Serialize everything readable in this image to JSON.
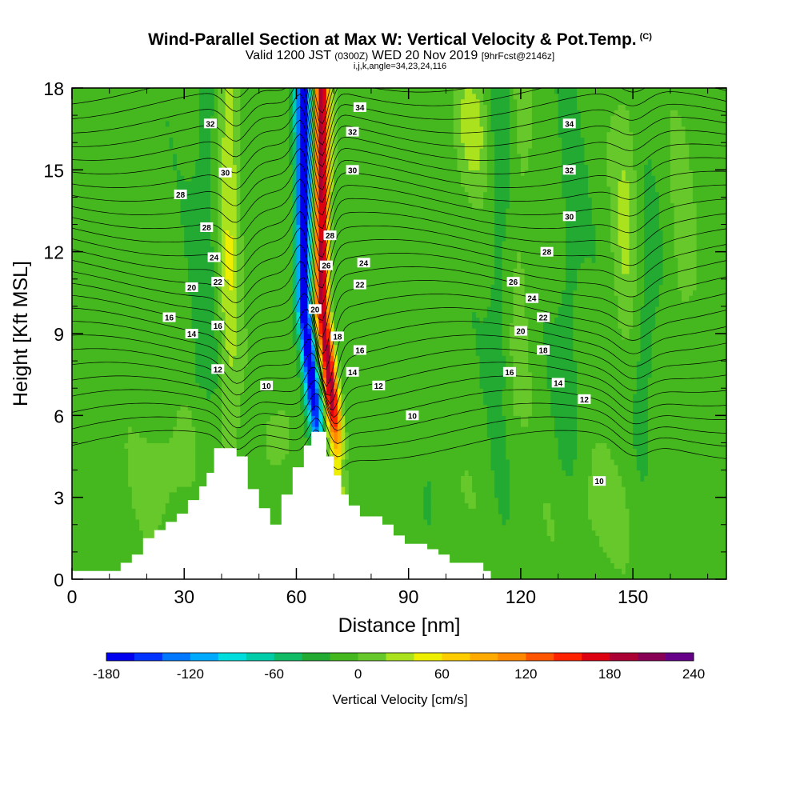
{
  "title": "Wind-Parallel Section at Max W: Vertical Velocity & Pot.Temp.",
  "title_mark": "(C)",
  "subtitle": {
    "valid": "Valid 1200 JST",
    "zulu": "(0300Z)",
    "date": "WED 20 Nov 2019",
    "forecast": "[9hrFcst@2146z]"
  },
  "subtitle2": "i,j,k,angle=34,23,24,116",
  "chart_data": {
    "type": "heatmap",
    "xlabel": "Distance [nm]",
    "ylabel": "Height [Kft MSL]",
    "xlim": [
      0,
      175
    ],
    "ylim": [
      0,
      18
    ],
    "x_ticks": [
      0,
      30,
      60,
      90,
      120,
      150
    ],
    "y_ticks": [
      0,
      3,
      6,
      9,
      12,
      15,
      18
    ],
    "grid": false,
    "colorbar": {
      "label": "Vertical Velocity [cm/s]",
      "min": -180,
      "max": 240,
      "step": 20,
      "tick_values": [
        -180,
        -120,
        -60,
        0,
        60,
        120,
        180,
        240
      ],
      "colors": [
        "#0000ee",
        "#0033ff",
        "#0077ff",
        "#00aaff",
        "#00dddd",
        "#00ccaa",
        "#11bb66",
        "#22aa33",
        "#44b81e",
        "#66c82a",
        "#aae21e",
        "#eeee00",
        "#ffcc00",
        "#ffaa00",
        "#ff8800",
        "#ff5500",
        "#ff2200",
        "#dd0011",
        "#aa0033",
        "#880055",
        "#660088"
      ]
    },
    "terrain_profile": {
      "distance": [
        0,
        13,
        16,
        19,
        22,
        25,
        28,
        31,
        34,
        36,
        38,
        41,
        44,
        47,
        50,
        53,
        56,
        59,
        62,
        64,
        66,
        68,
        70,
        72,
        74,
        77,
        80,
        83,
        86,
        89,
        92,
        95,
        98,
        101,
        104,
        107,
        110,
        112
      ],
      "height": [
        0.3,
        0.6,
        0.9,
        1.5,
        1.8,
        2.1,
        2.4,
        2.9,
        3.4,
        3.9,
        4.8,
        4.8,
        4.5,
        3.3,
        2.6,
        2.0,
        3.1,
        4.1,
        4.9,
        5.4,
        5.4,
        4.5,
        3.8,
        3.1,
        2.7,
        2.3,
        2.3,
        2.0,
        1.6,
        1.3,
        1.3,
        1.1,
        0.9,
        0.6,
        0.6,
        0.6,
        0.3,
        0.3
      ]
    },
    "theta_contour_labels": [
      {
        "text": "34",
        "x": 77,
        "y": 17.3
      },
      {
        "text": "32",
        "x": 37,
        "y": 16.7
      },
      {
        "text": "32",
        "x": 75,
        "y": 16.4
      },
      {
        "text": "30",
        "x": 41,
        "y": 14.9
      },
      {
        "text": "30",
        "x": 75,
        "y": 15.0
      },
      {
        "text": "28",
        "x": 29,
        "y": 14.1
      },
      {
        "text": "28",
        "x": 36,
        "y": 12.9
      },
      {
        "text": "28",
        "x": 69,
        "y": 12.6
      },
      {
        "text": "26",
        "x": 68,
        "y": 11.5
      },
      {
        "text": "24",
        "x": 38,
        "y": 11.8
      },
      {
        "text": "24",
        "x": 78,
        "y": 11.6
      },
      {
        "text": "22",
        "x": 39,
        "y": 10.9
      },
      {
        "text": "22",
        "x": 77,
        "y": 10.8
      },
      {
        "text": "20",
        "x": 32,
        "y": 10.7
      },
      {
        "text": "20",
        "x": 65,
        "y": 9.9
      },
      {
        "text": "18",
        "x": 71,
        "y": 8.9
      },
      {
        "text": "16",
        "x": 26,
        "y": 9.6
      },
      {
        "text": "16",
        "x": 39,
        "y": 9.3
      },
      {
        "text": "16",
        "x": 77,
        "y": 8.4
      },
      {
        "text": "14",
        "x": 32,
        "y": 9.0
      },
      {
        "text": "14",
        "x": 75,
        "y": 7.6
      },
      {
        "text": "12",
        "x": 39,
        "y": 7.7
      },
      {
        "text": "12",
        "x": 82,
        "y": 7.1
      },
      {
        "text": "10",
        "x": 52,
        "y": 7.1
      },
      {
        "text": "10",
        "x": 91,
        "y": 6.0
      },
      {
        "text": "34",
        "x": 133,
        "y": 16.7
      },
      {
        "text": "32",
        "x": 133,
        "y": 15.0
      },
      {
        "text": "30",
        "x": 133,
        "y": 13.3
      },
      {
        "text": "28",
        "x": 127,
        "y": 12.0
      },
      {
        "text": "26",
        "x": 118,
        "y": 10.9
      },
      {
        "text": "24",
        "x": 123,
        "y": 10.3
      },
      {
        "text": "22",
        "x": 126,
        "y": 9.6
      },
      {
        "text": "20",
        "x": 120,
        "y": 9.1
      },
      {
        "text": "18",
        "x": 126,
        "y": 8.4
      },
      {
        "text": "16",
        "x": 117,
        "y": 7.6
      },
      {
        "text": "14",
        "x": 130,
        "y": 7.2
      },
      {
        "text": "12",
        "x": 137,
        "y": 6.6
      },
      {
        "text": "10",
        "x": 141,
        "y": 3.6
      }
    ]
  }
}
